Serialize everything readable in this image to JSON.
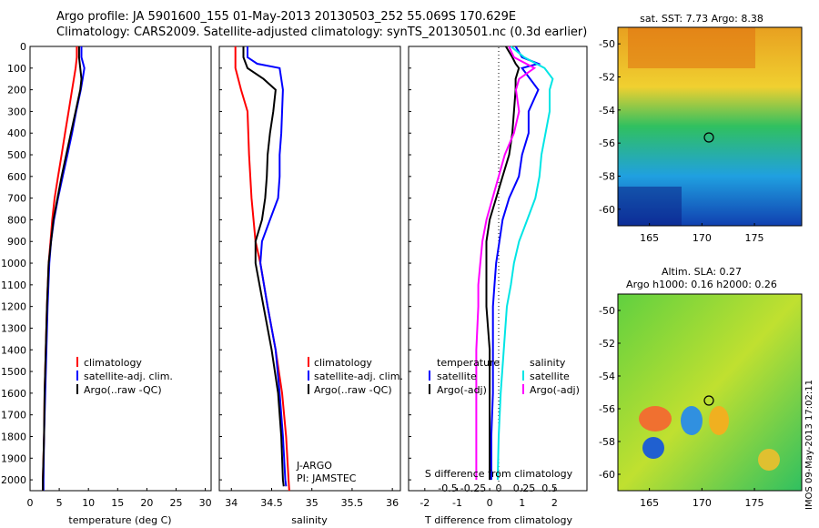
{
  "header": {
    "line1": "Argo profile: JA 5901600_155 01-May-2013 20130503_252 55.069S 170.629E",
    "line2": "Climatology: CARS2009. Satellite-adjusted climatology: synTS_20130501.nc (0.3d earlier)"
  },
  "colors": {
    "climatology": "#ff0000",
    "satellite": "#0000ff",
    "argo": "#000000",
    "satellite_salinity": "#00e5e5",
    "argo_salinity_diff": "#ff00ff"
  },
  "chart_data": [
    {
      "type": "line",
      "panel": "temperature",
      "xlabel": "temperature (deg C)",
      "xlim": [
        0,
        31
      ],
      "xticks": [
        0,
        5,
        10,
        15,
        20,
        25,
        30
      ],
      "ylim": [
        2050,
        0
      ],
      "yticks": [
        0,
        100,
        200,
        300,
        400,
        500,
        600,
        700,
        800,
        900,
        1000,
        1100,
        1200,
        1300,
        1400,
        1500,
        1600,
        1700,
        1800,
        1900,
        2000
      ],
      "legend": [
        "climatology",
        "satellite-adj. clim.",
        "Argo(..raw -QC)"
      ],
      "series": [
        {
          "name": "climatology",
          "color": "#ff0000",
          "depth": [
            0,
            50,
            100,
            200,
            300,
            400,
            500,
            600,
            700,
            800,
            900,
            1000,
            1200,
            1400,
            1600,
            1800,
            2000,
            2050
          ],
          "values": [
            8.0,
            8.0,
            7.8,
            7.2,
            6.6,
            6.0,
            5.4,
            4.8,
            4.2,
            3.8,
            3.5,
            3.2,
            2.9,
            2.7,
            2.5,
            2.4,
            2.2,
            2.2
          ]
        },
        {
          "name": "satellite-adj. clim.",
          "color": "#0000ff",
          "depth": [
            0,
            50,
            100,
            150,
            200,
            300,
            400,
            500,
            600,
            700,
            800,
            900,
            1000,
            1200,
            1400,
            1600,
            1800,
            2000,
            2050
          ],
          "values": [
            8.8,
            8.8,
            9.3,
            9.0,
            8.7,
            7.9,
            7.2,
            6.4,
            5.6,
            4.8,
            4.1,
            3.6,
            3.3,
            3.0,
            2.8,
            2.6,
            2.4,
            2.3,
            2.3
          ]
        },
        {
          "name": "Argo(..raw -QC)",
          "color": "#000000",
          "depth": [
            0,
            50,
            100,
            150,
            200,
            300,
            400,
            500,
            600,
            700,
            800,
            900,
            1000,
            1200,
            1400,
            1600,
            1800,
            2000,
            2050
          ],
          "values": [
            8.4,
            8.4,
            8.6,
            8.8,
            8.6,
            7.8,
            7.0,
            6.2,
            5.4,
            4.7,
            4.0,
            3.6,
            3.2,
            2.9,
            2.7,
            2.5,
            2.4,
            2.2,
            2.2
          ]
        }
      ]
    },
    {
      "type": "line",
      "panel": "salinity",
      "xlabel": "salinity",
      "xlim": [
        33.85,
        36.1
      ],
      "xticks": [
        34,
        34.5,
        35,
        35.5,
        36
      ],
      "ylim": [
        2050,
        0
      ],
      "legend": [
        "climatology",
        "satellite-adj. clim.",
        "Argo(..raw -QC)"
      ],
      "annotations": [
        "J-ARGO",
        "PI: JAMSTEC"
      ],
      "series": [
        {
          "name": "climatology",
          "color": "#ff0000",
          "depth": [
            0,
            100,
            200,
            300,
            500,
            700,
            900,
            1000,
            1200,
            1400,
            1600,
            1800,
            2000,
            2050
          ],
          "values": [
            34.05,
            34.05,
            34.12,
            34.2,
            34.22,
            34.25,
            34.3,
            34.36,
            34.45,
            34.55,
            34.63,
            34.68,
            34.71,
            34.72
          ]
        },
        {
          "name": "satellite-adj. clim.",
          "color": "#0000ff",
          "depth": [
            0,
            50,
            80,
            100,
            150,
            200,
            300,
            400,
            500,
            600,
            700,
            800,
            900,
            1000,
            1200,
            1400,
            1600,
            1800,
            2000,
            2030
          ],
          "values": [
            34.2,
            34.2,
            34.32,
            34.6,
            34.62,
            34.64,
            34.63,
            34.62,
            34.6,
            34.6,
            34.58,
            34.48,
            34.38,
            34.36,
            34.45,
            34.55,
            34.6,
            34.64,
            34.67,
            34.68
          ]
        },
        {
          "name": "Argo(..raw -QC)",
          "color": "#000000",
          "depth": [
            0,
            50,
            100,
            150,
            200,
            300,
            400,
            500,
            600,
            700,
            800,
            900,
            1000,
            1200,
            1400,
            1600,
            1800,
            2000,
            2030
          ],
          "values": [
            34.15,
            34.15,
            34.2,
            34.4,
            34.55,
            34.52,
            34.48,
            34.45,
            34.44,
            34.42,
            34.38,
            34.3,
            34.3,
            34.4,
            34.5,
            34.58,
            34.62,
            34.64,
            34.65
          ]
        }
      ]
    },
    {
      "type": "line",
      "panel": "difference",
      "xlabel": "T difference from climatology",
      "xlabel_top": "S difference from climatology",
      "xlim": [
        -2.5,
        3
      ],
      "xticks": [
        -2,
        -1,
        0,
        1,
        2
      ],
      "xticks_s": [
        -0.5,
        -0.25,
        0,
        0.25,
        0.5
      ],
      "ylim": [
        2050,
        0
      ],
      "legend_temperature": {
        "title": "temperature",
        "items": [
          "satellite",
          "Argo(-adj)"
        ]
      },
      "legend_salinity": {
        "title": "salinity",
        "items": [
          "satellite",
          "Argo(-adj)"
        ]
      },
      "series": [
        {
          "name": "satellite",
          "color": "#0000ff",
          "depth": [
            0,
            50,
            80,
            100,
            200,
            300,
            400,
            500,
            600,
            700,
            800,
            900,
            1000,
            1100,
            1200,
            1400,
            1600,
            1800,
            2000
          ],
          "values": [
            0.8,
            1.0,
            1.5,
            1.0,
            1.5,
            1.2,
            1.2,
            1.0,
            0.9,
            0.6,
            0.4,
            0.3,
            0.2,
            0.15,
            0.1,
            0.1,
            0.1,
            0.05,
            0.05
          ]
        },
        {
          "name": "Argo(-adj)",
          "color": "#000000",
          "depth": [
            0,
            50,
            80,
            100,
            150,
            200,
            300,
            400,
            500,
            600,
            700,
            800,
            900,
            1000,
            1100,
            1200,
            1400,
            1600,
            1800,
            2000
          ],
          "values": [
            0.5,
            0.7,
            0.8,
            0.9,
            0.8,
            0.8,
            0.75,
            0.7,
            0.6,
            0.4,
            0.2,
            0.0,
            -0.1,
            -0.1,
            -0.1,
            -0.1,
            0.0,
            0.0,
            0.0,
            0.0
          ]
        },
        {
          "name": "satellite (salinity)",
          "color": "#00e5e5",
          "depth": [
            0,
            50,
            100,
            150,
            200,
            300,
            400,
            500,
            600,
            700,
            800,
            900,
            1000,
            1100,
            1200,
            1400,
            1600,
            1800,
            2000
          ],
          "values": [
            0.12,
            0.25,
            0.45,
            0.53,
            0.5,
            0.5,
            0.46,
            0.42,
            0.4,
            0.36,
            0.28,
            0.2,
            0.15,
            0.12,
            0.08,
            0.05,
            0.02,
            0.0,
            -0.01
          ]
        },
        {
          "name": "Argo(-adj) (salinity)",
          "color": "#ff00ff",
          "depth": [
            0,
            50,
            100,
            150,
            200,
            300,
            400,
            500,
            600,
            700,
            800,
            900,
            1000,
            1100,
            1200,
            1400,
            1600,
            1800,
            2000
          ],
          "values": [
            0.1,
            0.15,
            0.35,
            0.2,
            0.17,
            0.2,
            0.15,
            0.06,
            0.0,
            -0.06,
            -0.12,
            -0.16,
            -0.18,
            -0.2,
            -0.2,
            -0.22,
            -0.22,
            -0.22,
            -0.22
          ]
        }
      ]
    },
    {
      "type": "heatmap",
      "panel": "sst_map",
      "title": "sat. SST: 7.73 Argo: 8.38",
      "xlim": [
        162,
        179.5
      ],
      "xticks": [
        165,
        170,
        175
      ],
      "ylim": [
        -61,
        -49
      ],
      "yticks": [
        -50,
        -52,
        -54,
        -56,
        -58,
        -60
      ],
      "marker": {
        "lon": 170.629,
        "lat": -55.069
      }
    },
    {
      "type": "heatmap",
      "panel": "sla_map",
      "title_line1": "Altim. SLA: 0.27",
      "title_line2": "Argo h1000: 0.16 h2000: 0.26",
      "xlim": [
        162,
        179.5
      ],
      "xticks": [
        165,
        170,
        175
      ],
      "ylim": [
        -61,
        -49
      ],
      "yticks": [
        -50,
        -52,
        -54,
        -56,
        -58,
        -60
      ],
      "marker": {
        "lon": 170.629,
        "lat": -55.069
      }
    }
  ],
  "footer": {
    "credit": "IMOS 09-May-2013 17:02:11"
  }
}
